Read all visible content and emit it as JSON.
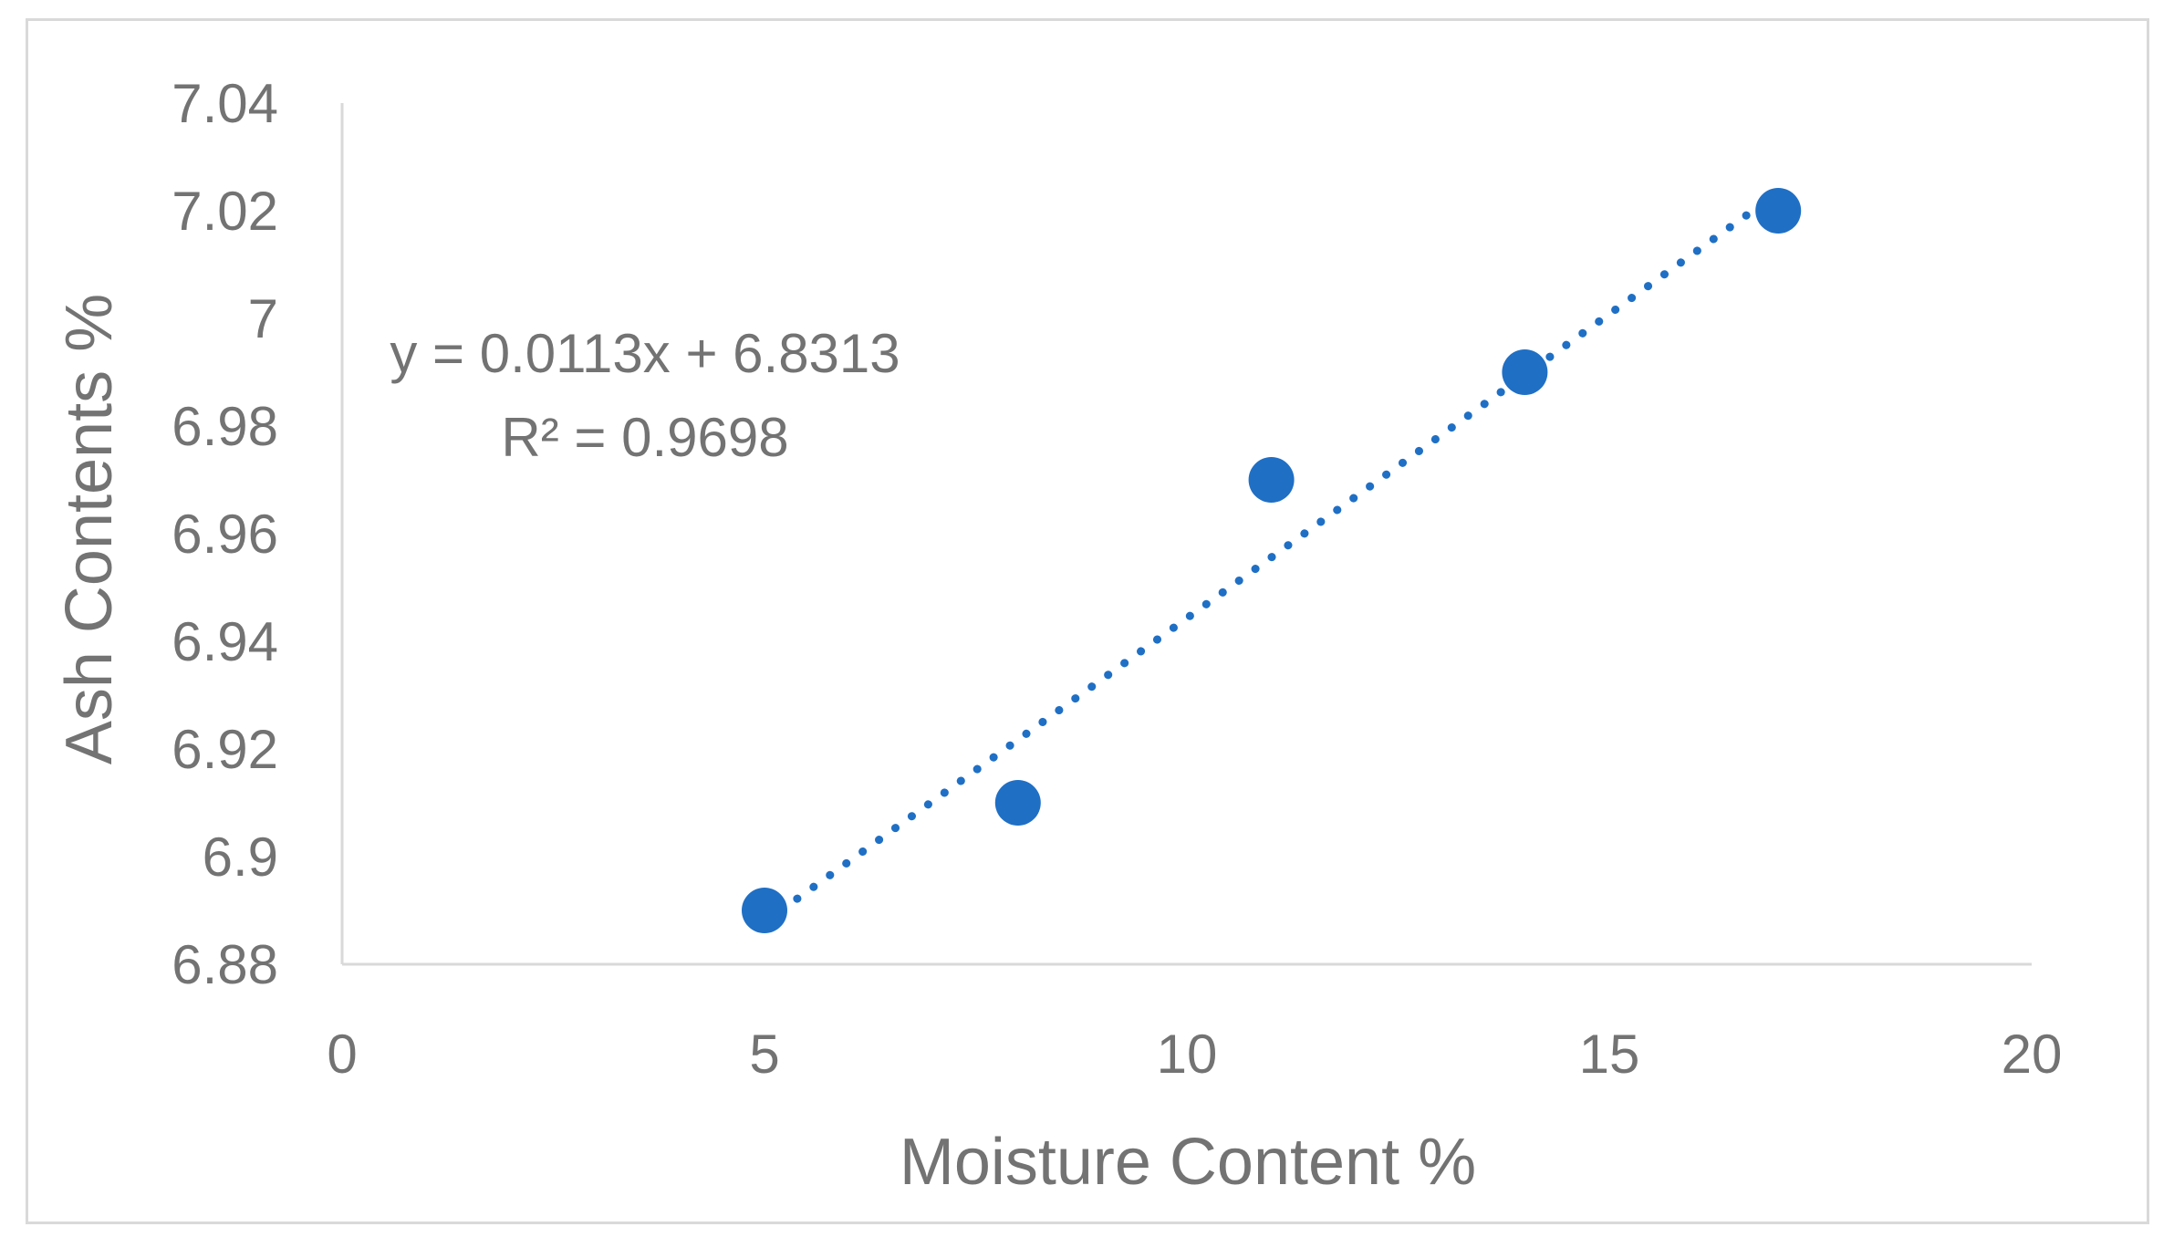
{
  "chart_data": {
    "type": "scatter",
    "title": "",
    "xlabel": "Moisture Content %",
    "ylabel": "Ash Contents %",
    "xlim": [
      0,
      20
    ],
    "ylim": [
      6.88,
      7.04
    ],
    "x_ticks": [
      "0",
      "5",
      "10",
      "15",
      "20"
    ],
    "y_ticks": [
      "6.88",
      "6.9",
      "6.92",
      "6.94",
      "6.96",
      "6.98",
      "7",
      "7.02",
      "7.04"
    ],
    "grid": false,
    "legend": "none",
    "series": [
      {
        "x": [
          5,
          8,
          11,
          14,
          17
        ],
        "y": [
          6.89,
          6.91,
          6.97,
          6.99,
          7.02
        ],
        "color": "#1f6fc5"
      }
    ],
    "trendline": {
      "kind": "linear",
      "style": "dotted",
      "color": "#1f6fc5",
      "slope": 0.0113,
      "intercept": 6.8313,
      "equation": "y = 0.0113x + 6.8313",
      "r_squared": "R² = 0.9698"
    }
  }
}
